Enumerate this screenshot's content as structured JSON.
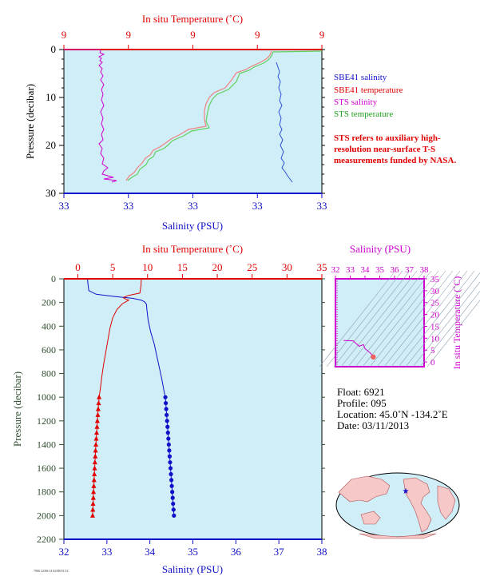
{
  "chart_data": [
    {
      "type": "line",
      "name_hint": "near-surface profile",
      "top_axis_label": "In situ Temperature (˚C)",
      "top_ticks": [
        "9",
        "9",
        "9",
        "9",
        "9"
      ],
      "bottom_axis_label": "Salinity (PSU)",
      "bottom_ticks": [
        "33",
        "33",
        "33",
        "33",
        "33"
      ],
      "ylabel": "Pressure (decibar)",
      "y_ticks": [
        "0",
        "10",
        "20",
        "30"
      ],
      "ylim": [
        0,
        30
      ],
      "legend": [
        {
          "name": "SBE41 salinity",
          "color": "#1010c8"
        },
        {
          "name": "SBE41 temperature",
          "color": "#e00000"
        },
        {
          "name": "STS salinity",
          "color": "#d000d0"
        },
        {
          "name": "STS temperature",
          "color": "#60d060"
        }
      ],
      "note": "STS refers to auxiliary high-resolution near-surface T-S measurements funded by NASA."
    },
    {
      "type": "line",
      "name_hint": "full-depth profile",
      "top_axis_label": "In situ Temperature (˚C)",
      "top_ticks": [
        "0",
        "5",
        "10",
        "15",
        "20",
        "25",
        "30",
        "35"
      ],
      "xlim_temperature": [
        -2,
        35
      ],
      "bottom_axis_label": "Salinity (PSU)",
      "bottom_ticks": [
        "32",
        "33",
        "34",
        "35",
        "36",
        "37",
        "38"
      ],
      "xlim_salinity": [
        32,
        38
      ],
      "ylabel": "Pressure (decibar)",
      "y_ticks": [
        "0",
        "200",
        "400",
        "600",
        "800",
        "1000",
        "1200",
        "1400",
        "1600",
        "1800",
        "2000",
        "2200"
      ],
      "ylim": [
        0,
        2200
      ],
      "series": [
        {
          "name": "salinity",
          "color": "#1010c8",
          "pressure": [
            5,
            40,
            100,
            130,
            150,
            165,
            180,
            195,
            215,
            260,
            350,
            450,
            550,
            650,
            750,
            850,
            950,
            1000
          ],
          "values": [
            32.55,
            32.56,
            32.58,
            32.75,
            33.2,
            33.6,
            33.8,
            33.88,
            33.92,
            33.93,
            33.96,
            34.02,
            34.1,
            34.16,
            34.22,
            34.28,
            34.33,
            34.36
          ],
          "markers_pressure": [
            1000,
            1050,
            1100,
            1150,
            1200,
            1250,
            1300,
            1350,
            1400,
            1450,
            1500,
            1550,
            1600,
            1650,
            1700,
            1750,
            1800,
            1850,
            1900,
            1950,
            2000
          ],
          "markers_values": [
            34.36,
            34.37,
            34.38,
            34.39,
            34.4,
            34.41,
            34.42,
            34.43,
            34.44,
            34.45,
            34.46,
            34.47,
            34.48,
            34.49,
            34.5,
            34.51,
            34.52,
            34.53,
            34.54,
            34.55,
            34.56
          ]
        },
        {
          "name": "temperature",
          "color": "#e00000",
          "pressure": [
            5,
            60,
            120,
            140,
            155,
            165,
            180,
            210,
            260,
            330,
            420,
            520,
            620,
            720,
            820,
            920,
            1000
          ],
          "values": [
            9.1,
            9.05,
            8.9,
            7.3,
            6.6,
            6.6,
            7.3,
            6.4,
            5.6,
            5.0,
            4.6,
            4.3,
            4.0,
            3.7,
            3.45,
            3.25,
            3.05
          ],
          "markers_pressure": [
            1000,
            1050,
            1100,
            1150,
            1200,
            1250,
            1300,
            1350,
            1400,
            1450,
            1500,
            1550,
            1600,
            1650,
            1700,
            1750,
            1800,
            1850,
            1900,
            1950,
            2000
          ],
          "markers_values": [
            3.05,
            2.98,
            2.92,
            2.86,
            2.8,
            2.75,
            2.7,
            2.64,
            2.59,
            2.54,
            2.5,
            2.45,
            2.41,
            2.37,
            2.33,
            2.29,
            2.25,
            2.22,
            2.18,
            2.15,
            2.12
          ]
        }
      ]
    },
    {
      "type": "scatter",
      "name_hint": "T-S diagram",
      "top_axis_label": "Salinity (PSU)",
      "top_ticks": [
        "32",
        "33",
        "34",
        "35",
        "36",
        "37",
        "38"
      ],
      "xlim": [
        32,
        38
      ],
      "right_axis_label": "In situ Temperature (˚C)",
      "right_ticks": [
        "0",
        "5",
        "10",
        "15",
        "20",
        "25",
        "30",
        "35"
      ],
      "ylim": [
        -2,
        35
      ],
      "trace": {
        "salinity": [
          32.55,
          32.6,
          33.2,
          33.6,
          33.9,
          34.0,
          34.2,
          34.4,
          34.56
        ],
        "temperature": [
          9.1,
          9.0,
          8.9,
          6.6,
          7.3,
          5.6,
          4.6,
          3.5,
          2.1
        ]
      }
    }
  ],
  "info": {
    "float": "Float: 6921",
    "profile": "Profile: 095",
    "location": "Location: 45.0˚N -134.2˚E",
    "date": "Date: 03/11/2013"
  },
  "footer_text": "7900 22/06/14 02/08/01/14",
  "colors": {
    "plot_bg": "#d0eef8",
    "axis_red": "#e00000",
    "axis_blue": "#1010c8",
    "axis_magenta": "#d000d0",
    "tick_green": "#2f4f2f"
  }
}
